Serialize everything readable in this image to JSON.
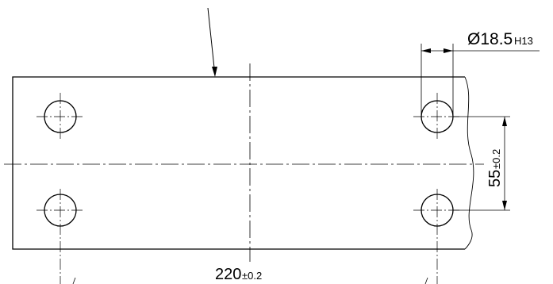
{
  "drawing": {
    "dimensions": {
      "hole_diameter": {
        "value": "Ø18.5",
        "tolerance": "H13"
      },
      "hole_spacing_vertical": {
        "value": "55",
        "tolerance": "±0.2"
      },
      "hole_spacing_horizontal": {
        "value": "220",
        "tolerance": "±0.2"
      }
    }
  }
}
